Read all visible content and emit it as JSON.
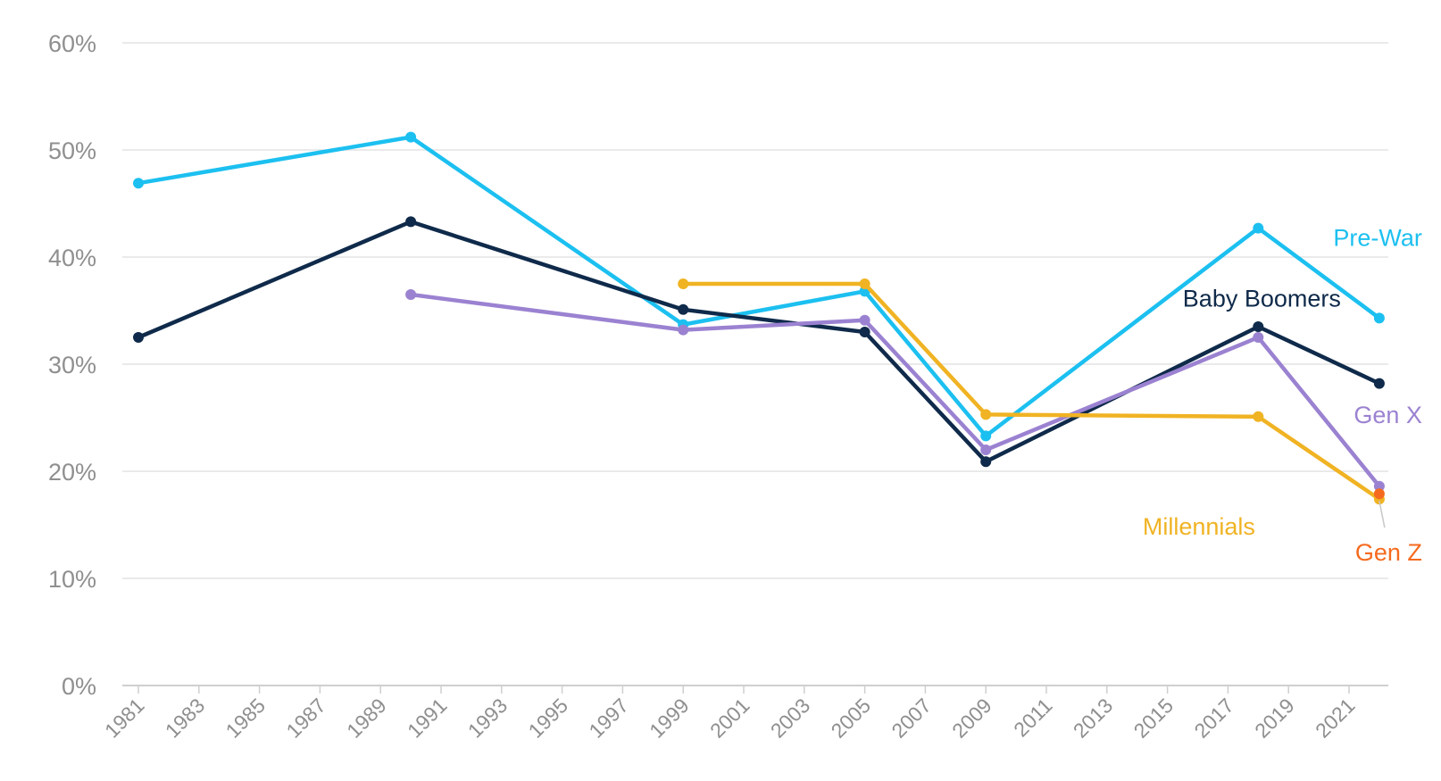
{
  "chart_data": {
    "type": "line",
    "title": "",
    "xlabel": "",
    "ylabel": "",
    "xlim": [
      1981,
      2022
    ],
    "ylim": [
      0,
      60
    ],
    "x_ticks": [
      1981,
      1983,
      1985,
      1987,
      1989,
      1991,
      1993,
      1995,
      1997,
      1999,
      2001,
      2003,
      2005,
      2007,
      2009,
      2011,
      2013,
      2015,
      2017,
      2019,
      2021
    ],
    "y_ticks": [
      0,
      10,
      20,
      30,
      40,
      50,
      60
    ],
    "y_tick_labels": [
      "0%",
      "10%",
      "20%",
      "30%",
      "40%",
      "50%",
      "60%"
    ],
    "grid": true,
    "legend": "direct labels at line ends",
    "series": [
      {
        "name": "Pre-War",
        "color": "#1cc0f0",
        "points": [
          [
            1981,
            46.9
          ],
          [
            1990,
            51.2
          ],
          [
            1999,
            33.7
          ],
          [
            2005,
            36.8
          ],
          [
            2009,
            23.3
          ],
          [
            2018,
            42.7
          ],
          [
            2022,
            34.3
          ]
        ]
      },
      {
        "name": "Baby Boomers",
        "color": "#0f2a4a",
        "points": [
          [
            1981,
            32.5
          ],
          [
            1990,
            43.3
          ],
          [
            1999,
            35.1
          ],
          [
            2005,
            33.0
          ],
          [
            2009,
            20.9
          ],
          [
            2018,
            33.5
          ],
          [
            2022,
            28.2
          ]
        ]
      },
      {
        "name": "Gen X",
        "color": "#9b82d1",
        "points": [
          [
            1990,
            36.5
          ],
          [
            1999,
            33.2
          ],
          [
            2005,
            34.1
          ],
          [
            2009,
            22.0
          ],
          [
            2018,
            32.5
          ],
          [
            2022,
            18.6
          ]
        ]
      },
      {
        "name": "Millennials",
        "color": "#f0b323",
        "points": [
          [
            1999,
            37.5
          ],
          [
            2005,
            37.5
          ],
          [
            2009,
            25.3
          ],
          [
            2018,
            25.1
          ],
          [
            2022,
            17.4
          ]
        ]
      },
      {
        "name": "Gen Z",
        "color": "#f56a1e",
        "points": [
          [
            2022,
            17.9
          ]
        ]
      }
    ]
  }
}
